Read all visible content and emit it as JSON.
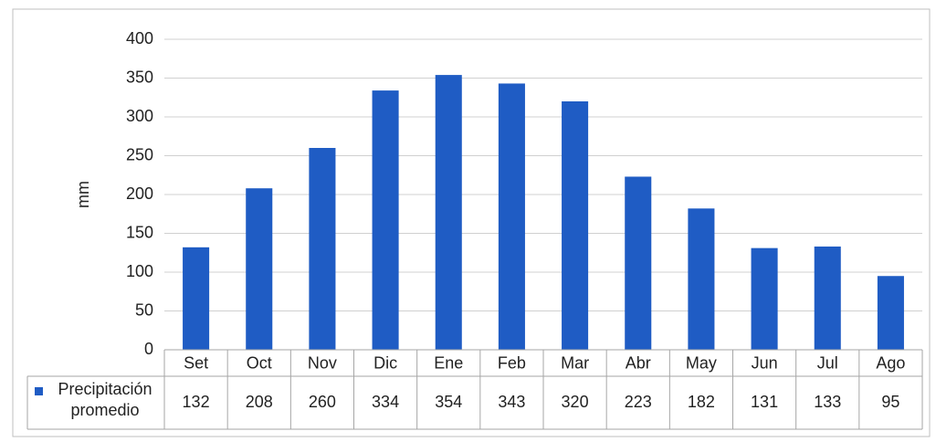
{
  "chart_data": {
    "type": "bar",
    "y_label": "mm",
    "categories": [
      "Set",
      "Oct",
      "Nov",
      "Dic",
      "Ene",
      "Feb",
      "Mar",
      "Abr",
      "May",
      "Jun",
      "Jul",
      "Ago"
    ],
    "series": [
      {
        "name": "Precipitación promedio",
        "color": "#1f5cc4",
        "values": [
          132,
          208,
          260,
          334,
          354,
          343,
          320,
          223,
          182,
          131,
          133,
          95
        ]
      }
    ],
    "ylim": [
      0,
      400
    ],
    "yticks": [
      0,
      50,
      100,
      150,
      200,
      250,
      300,
      350,
      400
    ],
    "grid": true,
    "data_table": true
  }
}
